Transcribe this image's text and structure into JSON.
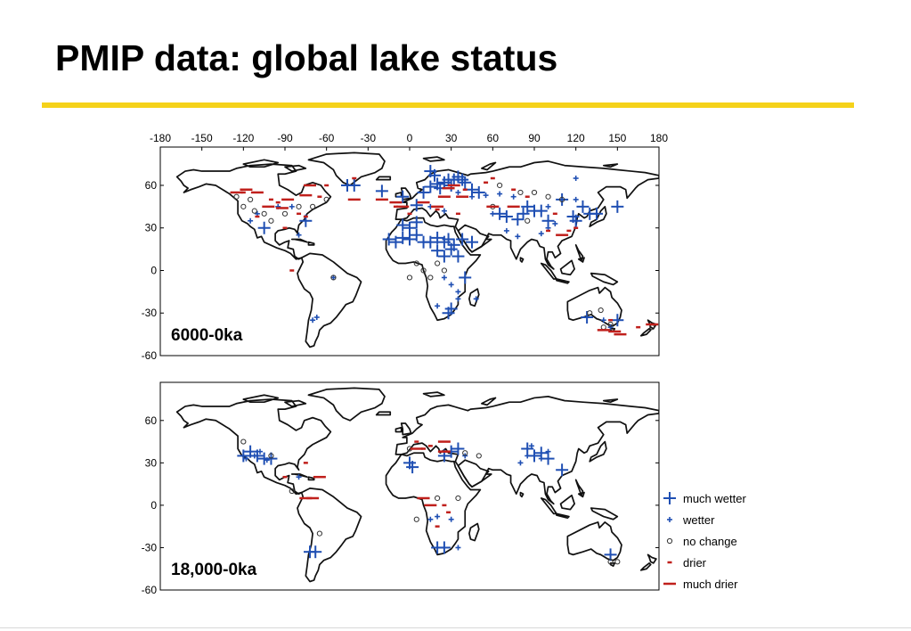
{
  "slide": {
    "title": "PMIP data: global lake status"
  },
  "colors": {
    "accent_rule": "#f5d21a",
    "wetter": "#1f4fb3",
    "drier": "#c0201c",
    "no_change": "#333333"
  },
  "legend": [
    {
      "key": "much_wetter",
      "label": "much wetter"
    },
    {
      "key": "wetter",
      "label": "wetter"
    },
    {
      "key": "no_change",
      "label": "no change"
    },
    {
      "key": "drier",
      "label": "drier"
    },
    {
      "key": "much_drier",
      "label": "much drier"
    }
  ],
  "chart_data": [
    {
      "type": "scatter",
      "panel_label": "6000-0ka",
      "xticks": [
        "-180",
        "-150",
        "-120",
        "-90",
        "-60",
        "-30",
        "0",
        "30",
        "60",
        "90",
        "120",
        "150",
        "180"
      ],
      "yticks": [
        "60",
        "30",
        "0",
        "-30",
        "-60"
      ],
      "xlim": [
        -180,
        180
      ],
      "ylim": [
        -60,
        87
      ],
      "series": [
        {
          "name": "much wetter",
          "points": [
            [
              -40,
              60
            ],
            [
              -20,
              56
            ],
            [
              -5,
              52
            ],
            [
              5,
              46
            ],
            [
              10,
              55
            ],
            [
              15,
              59
            ],
            [
              20,
              61
            ],
            [
              22,
              58
            ],
            [
              25,
              62
            ],
            [
              28,
              64
            ],
            [
              30,
              60
            ],
            [
              32,
              64
            ],
            [
              35,
              66
            ],
            [
              38,
              64
            ],
            [
              40,
              62
            ],
            [
              45,
              57
            ],
            [
              50,
              55
            ],
            [
              15,
              70
            ],
            [
              18,
              67
            ],
            [
              -5,
              32
            ],
            [
              0,
              30
            ],
            [
              5,
              34
            ],
            [
              -15,
              22
            ],
            [
              -10,
              20
            ],
            [
              -5,
              23
            ],
            [
              0,
              22
            ],
            [
              5,
              25
            ],
            [
              10,
              20
            ],
            [
              15,
              20
            ],
            [
              20,
              23
            ],
            [
              25,
              20
            ],
            [
              28,
              22
            ],
            [
              32,
              18
            ],
            [
              38,
              22
            ],
            [
              30,
              15
            ],
            [
              20,
              14
            ],
            [
              35,
              10
            ],
            [
              25,
              10
            ],
            [
              45,
              20
            ],
            [
              40,
              -5
            ],
            [
              28,
              -30
            ],
            [
              30,
              -27
            ],
            [
              65,
              40
            ],
            [
              70,
              38
            ],
            [
              78,
              36
            ],
            [
              82,
              40
            ],
            [
              85,
              45
            ],
            [
              90,
              42
            ],
            [
              95,
              42
            ],
            [
              100,
              35
            ],
            [
              118,
              38
            ],
            [
              125,
              45
            ],
            [
              130,
              40
            ],
            [
              120,
              35
            ],
            [
              135,
              40
            ],
            [
              110,
              50
            ],
            [
              150,
              45
            ],
            [
              128,
              -33
            ],
            [
              150,
              -35
            ],
            [
              -105,
              30
            ],
            [
              -75,
              35
            ],
            [
              -45,
              60
            ]
          ]
        },
        {
          "name": "wetter",
          "points": [
            [
              -115,
              35
            ],
            [
              -110,
              40
            ],
            [
              -95,
              45
            ],
            [
              -85,
              45
            ],
            [
              -80,
              25
            ],
            [
              -55,
              -5
            ],
            [
              -70,
              -35
            ],
            [
              -67,
              -33
            ],
            [
              15,
              45
            ],
            [
              25,
              42
            ],
            [
              35,
              55
            ],
            [
              45,
              52
            ],
            [
              55,
              53
            ],
            [
              65,
              54
            ],
            [
              75,
              52
            ],
            [
              60,
              40
            ],
            [
              70,
              28
            ],
            [
              78,
              24
            ],
            [
              95,
              26
            ],
            [
              100,
              30
            ],
            [
              105,
              33
            ],
            [
              120,
              50
            ],
            [
              140,
              -35
            ],
            [
              145,
              -40
            ],
            [
              25,
              -5
            ],
            [
              35,
              -15
            ],
            [
              35,
              -20
            ],
            [
              30,
              -10
            ],
            [
              48,
              -20
            ],
            [
              20,
              -25
            ],
            [
              120,
              65
            ],
            [
              100,
              45
            ]
          ]
        },
        {
          "name": "no change",
          "points": [
            [
              -120,
              45
            ],
            [
              -112,
              42
            ],
            [
              -105,
              40
            ],
            [
              -100,
              35
            ],
            [
              -90,
              40
            ],
            [
              -80,
              45
            ],
            [
              -125,
              52
            ],
            [
              -115,
              50
            ],
            [
              -70,
              45
            ],
            [
              -60,
              50
            ],
            [
              -55,
              -5
            ],
            [
              0,
              -5
            ],
            [
              10,
              0
            ],
            [
              5,
              5
            ],
            [
              20,
              5
            ],
            [
              25,
              0
            ],
            [
              15,
              -5
            ],
            [
              65,
              60
            ],
            [
              80,
              55
            ],
            [
              90,
              55
            ],
            [
              100,
              52
            ],
            [
              110,
              50
            ],
            [
              60,
              45
            ],
            [
              85,
              35
            ],
            [
              138,
              -28
            ],
            [
              140,
              -40
            ],
            [
              145,
              -38
            ],
            [
              175,
              -40
            ],
            [
              130,
              -30
            ]
          ]
        },
        {
          "name": "drier",
          "points": [
            [
              -120,
              55
            ],
            [
              -100,
              50
            ],
            [
              -95,
              48
            ],
            [
              -80,
              40
            ],
            [
              -75,
              38
            ],
            [
              -65,
              52
            ],
            [
              -110,
              38
            ],
            [
              -90,
              30
            ],
            [
              -60,
              60
            ],
            [
              -40,
              65
            ],
            [
              -10,
              45
            ],
            [
              0,
              40
            ],
            [
              20,
              43
            ],
            [
              35,
              40
            ],
            [
              40,
              57
            ],
            [
              55,
              62
            ],
            [
              60,
              65
            ],
            [
              75,
              57
            ],
            [
              85,
              52
            ],
            [
              105,
              40
            ],
            [
              100,
              28
            ],
            [
              115,
              28
            ],
            [
              120,
              30
            ],
            [
              -85,
              0
            ],
            [
              145,
              -35
            ],
            [
              165,
              -40
            ]
          ]
        },
        {
          "name": "much drier",
          "points": [
            [
              -125,
              55
            ],
            [
              -118,
              57
            ],
            [
              -110,
              55
            ],
            [
              -102,
              45
            ],
            [
              -92,
              44
            ],
            [
              -88,
              50
            ],
            [
              -75,
              53
            ],
            [
              -72,
              60
            ],
            [
              -40,
              50
            ],
            [
              -20,
              50
            ],
            [
              -10,
              48
            ],
            [
              -5,
              45
            ],
            [
              10,
              48
            ],
            [
              20,
              45
            ],
            [
              28,
              58
            ],
            [
              32,
              60
            ],
            [
              25,
              52
            ],
            [
              38,
              52
            ],
            [
              60,
              45
            ],
            [
              75,
              45
            ],
            [
              110,
              25
            ],
            [
              140,
              -42
            ],
            [
              148,
              -43
            ],
            [
              152,
              -45
            ],
            [
              175,
              -38
            ]
          ]
        }
      ]
    },
    {
      "type": "scatter",
      "panel_label": "18,000-0ka",
      "xticks": [],
      "yticks": [
        "60",
        "30",
        "0",
        "-30",
        "-60"
      ],
      "xlim": [
        -180,
        180
      ],
      "ylim": [
        -60,
        87
      ],
      "series": [
        {
          "name": "much wetter",
          "points": [
            [
              -120,
              35
            ],
            [
              -115,
              38
            ],
            [
              -110,
              35
            ],
            [
              -105,
              33
            ],
            [
              -100,
              33
            ],
            [
              -72,
              -33
            ],
            [
              -68,
              -33
            ],
            [
              0,
              30
            ],
            [
              2,
              27
            ],
            [
              25,
              35
            ],
            [
              30,
              38
            ],
            [
              35,
              40
            ],
            [
              85,
              40
            ],
            [
              90,
              35
            ],
            [
              95,
              37
            ],
            [
              100,
              33
            ],
            [
              110,
              25
            ],
            [
              20,
              -30
            ],
            [
              25,
              -30
            ],
            [
              145,
              -35
            ]
          ]
        },
        {
          "name": "wetter",
          "points": [
            [
              -118,
              33
            ],
            [
              -112,
              35
            ],
            [
              -108,
              38
            ],
            [
              -103,
              32
            ],
            [
              -80,
              20
            ],
            [
              15,
              -10
            ],
            [
              20,
              -8
            ],
            [
              30,
              -10
            ],
            [
              35,
              -30
            ],
            [
              40,
              35
            ],
            [
              80,
              30
            ],
            [
              85,
              35
            ],
            [
              95,
              33
            ],
            [
              100,
              38
            ],
            [
              88,
              42
            ]
          ]
        },
        {
          "name": "no change",
          "points": [
            [
              -120,
              45
            ],
            [
              -100,
              35
            ],
            [
              -85,
              10
            ],
            [
              -65,
              -20
            ],
            [
              0,
              40
            ],
            [
              5,
              -10
            ],
            [
              20,
              5
            ],
            [
              35,
              5
            ],
            [
              40,
              37
            ],
            [
              50,
              35
            ],
            [
              150,
              -40
            ],
            [
              145,
              -40
            ]
          ]
        },
        {
          "name": "drier",
          "points": [
            [
              -75,
              30
            ],
            [
              -90,
              20
            ],
            [
              10,
              40
            ],
            [
              20,
              -15
            ],
            [
              25,
              0
            ],
            [
              28,
              -5
            ],
            [
              5,
              45
            ],
            [
              15,
              42
            ]
          ]
        },
        {
          "name": "much drier",
          "points": [
            [
              -70,
              5
            ],
            [
              -75,
              5
            ],
            [
              10,
              5
            ],
            [
              15,
              0
            ],
            [
              25,
              45
            ],
            [
              -65,
              20
            ],
            [
              5,
              40
            ],
            [
              25,
              38
            ]
          ]
        }
      ]
    }
  ]
}
